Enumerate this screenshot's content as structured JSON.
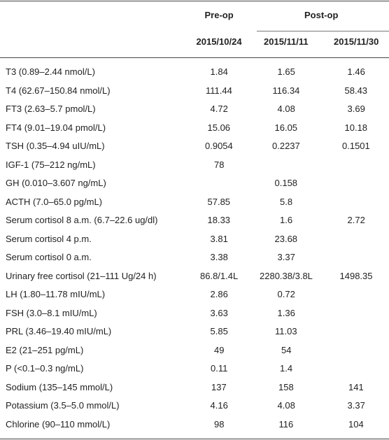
{
  "table": {
    "groups": [
      "Pre-op",
      "Post-op"
    ],
    "dates": [
      "2015/10/24",
      "2015/11/11",
      "2015/11/30"
    ],
    "rows": [
      {
        "label": "T3 (0.89–2.44 nmol/L)",
        "cells": [
          "1.84",
          "1.65",
          "1.46"
        ]
      },
      {
        "label": "T4 (62.67–150.84 nmol/L)",
        "cells": [
          "111.44",
          "116.34",
          "58.43"
        ]
      },
      {
        "label": "FT3 (2.63–5.7 pmol/L)",
        "cells": [
          "4.72",
          "4.08",
          "3.69"
        ]
      },
      {
        "label": "FT4 (9.01–19.04 pmol/L)",
        "cells": [
          "15.06",
          "16.05",
          "10.18"
        ]
      },
      {
        "label": "TSH (0.35–4.94 uIU/mL)",
        "cells": [
          "0.9054",
          "0.2237",
          "0.1501"
        ]
      },
      {
        "label": "IGF-1 (75–212 ng/mL)",
        "cells": [
          "78",
          null,
          null
        ]
      },
      {
        "label": "GH (0.010–3.607 ng/mL)",
        "cells": [
          null,
          "0.158",
          null
        ]
      },
      {
        "label": "ACTH (7.0–65.0 pg/mL)",
        "cells": [
          "57.85",
          "5.8",
          null
        ]
      },
      {
        "label": "Serum cortisol 8 a.m. (6.7–22.6 ug/dl)",
        "cells": [
          "18.33",
          "1.6",
          "2.72"
        ]
      },
      {
        "label": "Serum cortisol 4 p.m.",
        "cells": [
          "3.81",
          "23.68",
          null
        ]
      },
      {
        "label": "Serum cortisol 0 a.m.",
        "cells": [
          "3.38",
          "3.37",
          null
        ]
      },
      {
        "label": "Urinary free cortisol (21–111 Ug/24 h)",
        "cells": [
          "86.8/1.4L",
          "2280.38/3.8L",
          "1498.35"
        ]
      },
      {
        "label": "LH (1.80–11.78 mIU/mL)",
        "cells": [
          "2.86",
          "0.72",
          null
        ]
      },
      {
        "label": "FSH (3.0–8.1 mIU/mL)",
        "cells": [
          "3.63",
          "1.36",
          null
        ]
      },
      {
        "label": "PRL (3.46–19.40 mIU/mL)",
        "cells": [
          "5.85",
          "11.03",
          null
        ]
      },
      {
        "label": "E2 (21–251 pg/mL)",
        "cells": [
          "49",
          "54",
          null
        ]
      },
      {
        "label": "P (<0.1–0.3 ng/mL)",
        "cells": [
          "0.11",
          "1.4",
          null
        ]
      },
      {
        "label": "Sodium (135–145 mmol/L)",
        "cells": [
          "137",
          "158",
          "141"
        ]
      },
      {
        "label": "Potassium (3.5–5.0 mmol/L)",
        "cells": [
          "4.16",
          "4.08",
          "3.37"
        ]
      },
      {
        "label": "Chlorine (90–110 mmol/L)",
        "cells": [
          "98",
          "116",
          "104"
        ]
      }
    ]
  }
}
